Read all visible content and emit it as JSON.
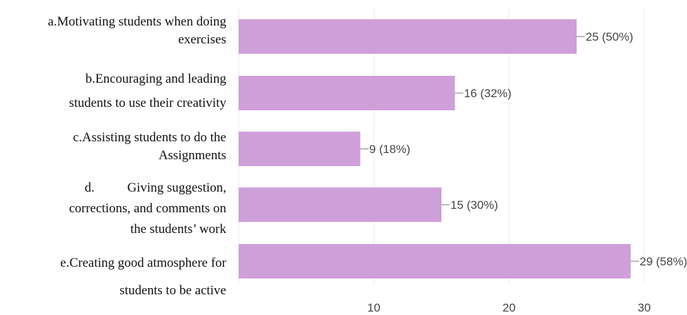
{
  "chart_data": {
    "type": "bar",
    "orientation": "horizontal",
    "categories": [
      [
        "a.Motivating students when doing",
        "exercises"
      ],
      [
        "b.Encouraging and leading",
        "students to use their creativity"
      ],
      [
        "c.Assisting students to do the",
        "Assignments"
      ],
      [
        "d.          Giving suggestion,",
        "corrections, and comments on",
        "the students’ work"
      ],
      [
        "e.Creating good atmosphere for",
        "students to be active"
      ]
    ],
    "values": [
      25,
      16,
      9,
      15,
      29
    ],
    "data_labels": [
      "25 (50%)",
      "16 (32%)",
      "9 (18%)",
      "15 (30%)",
      "29 (58%)"
    ],
    "xticks": [
      "10",
      "20",
      "30"
    ],
    "xlim": [
      0,
      30
    ],
    "grid": true,
    "colors": {
      "bar": "#cf9fd9",
      "grid": "#e9e9e9",
      "label": "#444444"
    }
  }
}
